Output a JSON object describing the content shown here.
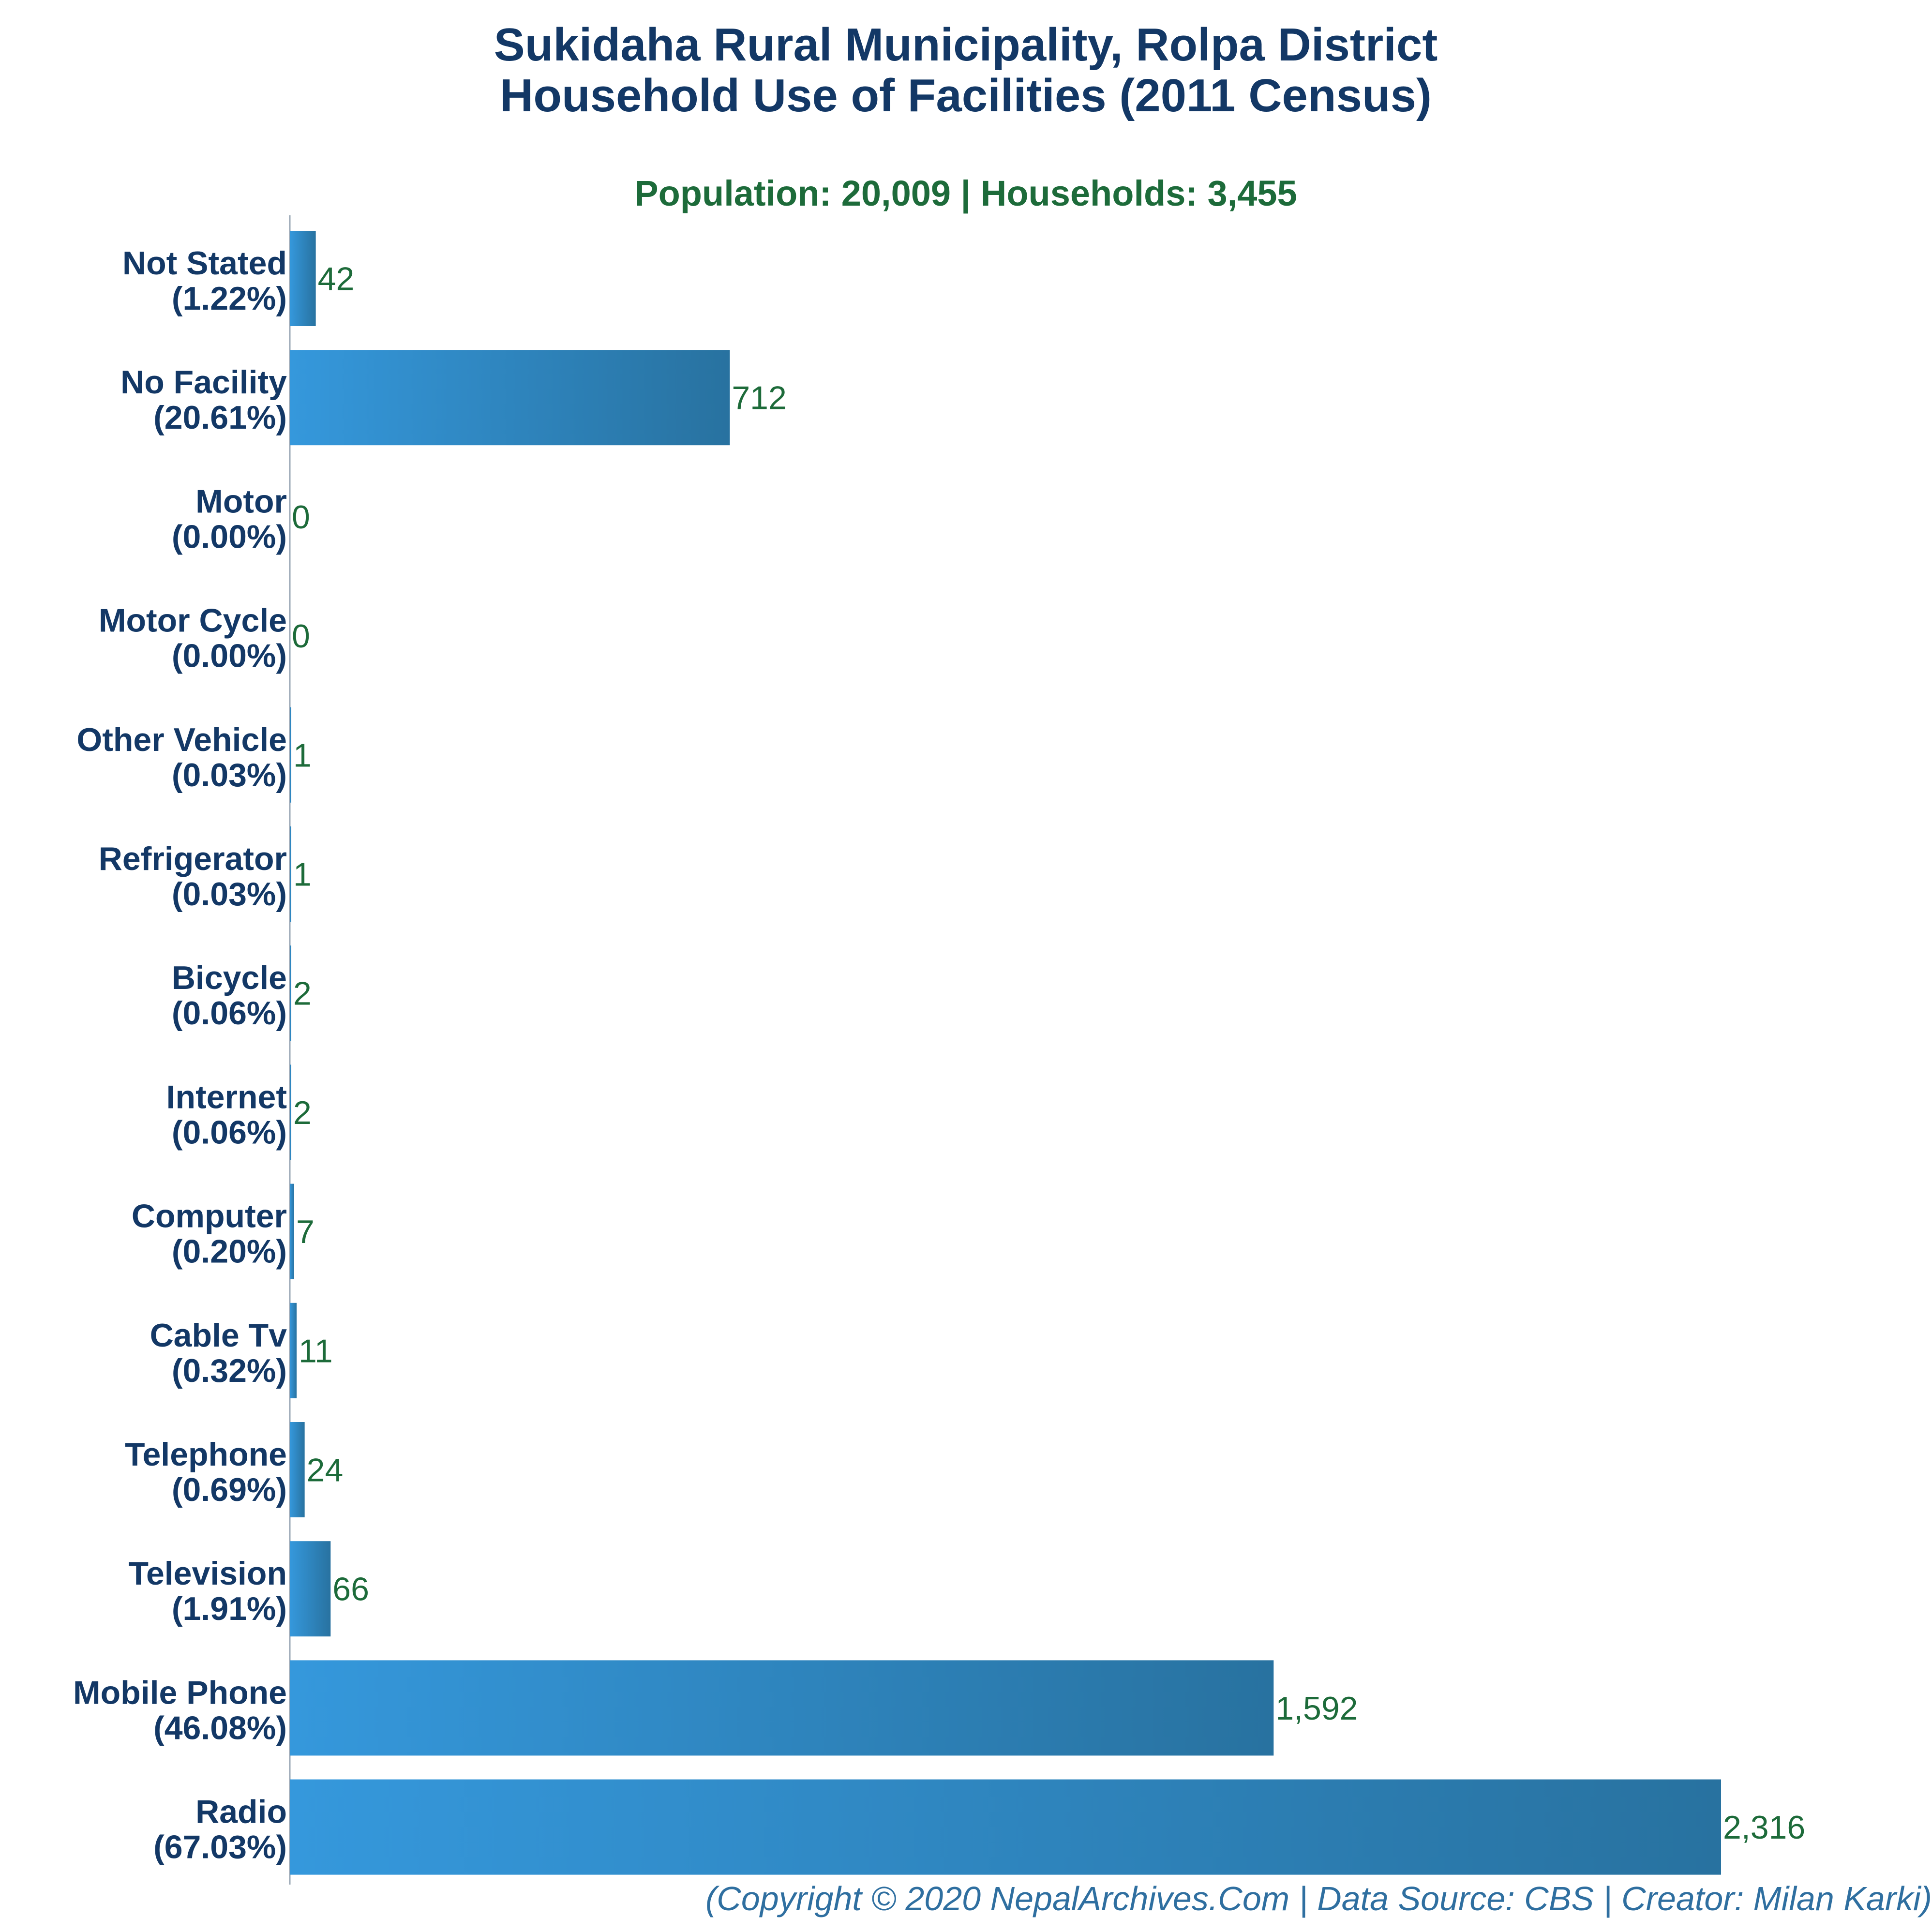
{
  "chart_data": {
    "type": "bar",
    "orientation": "horizontal",
    "title_lines": [
      "Sukidaha Rural Municipality, Rolpa District",
      "Household Use of Facilities (2011 Census)"
    ],
    "subtitle": "Population: 20,009 | Households: 3,455",
    "categories": [
      {
        "name": "Not Stated",
        "pct": "(1.22%)",
        "value": 42,
        "value_label": "42"
      },
      {
        "name": "No Facility",
        "pct": "(20.61%)",
        "value": 712,
        "value_label": "712"
      },
      {
        "name": "Motor",
        "pct": "(0.00%)",
        "value": 0,
        "value_label": "0"
      },
      {
        "name": "Motor Cycle",
        "pct": "(0.00%)",
        "value": 0,
        "value_label": "0"
      },
      {
        "name": "Other Vehicle",
        "pct": "(0.03%)",
        "value": 1,
        "value_label": "1"
      },
      {
        "name": "Refrigerator",
        "pct": "(0.03%)",
        "value": 1,
        "value_label": "1"
      },
      {
        "name": "Bicycle",
        "pct": "(0.06%)",
        "value": 2,
        "value_label": "2"
      },
      {
        "name": "Internet",
        "pct": "(0.06%)",
        "value": 2,
        "value_label": "2"
      },
      {
        "name": "Computer",
        "pct": "(0.20%)",
        "value": 7,
        "value_label": "7"
      },
      {
        "name": "Cable Tv",
        "pct": "(0.32%)",
        "value": 11,
        "value_label": "11"
      },
      {
        "name": "Telephone",
        "pct": "(0.69%)",
        "value": 24,
        "value_label": "24"
      },
      {
        "name": "Television",
        "pct": "(1.91%)",
        "value": 66,
        "value_label": "66"
      },
      {
        "name": "Mobile Phone",
        "pct": "(46.08%)",
        "value": 1592,
        "value_label": "1,592"
      },
      {
        "name": "Radio",
        "pct": "(67.03%)",
        "value": 2316,
        "value_label": "2,316"
      }
    ],
    "xlim": [
      0,
      2316
    ],
    "grid": false,
    "legend": "none",
    "colors": {
      "bar_left": "#3598dc",
      "bar_right": "#2872a0",
      "title": "#133866",
      "subtitle": "#1d6b3a",
      "value_label": "#1d6b3a",
      "footer": "#2f6fa0"
    }
  },
  "footer": "(Copyright © 2020 NepalArchives.Com | Data Source: CBS | Creator: Milan Karki)"
}
